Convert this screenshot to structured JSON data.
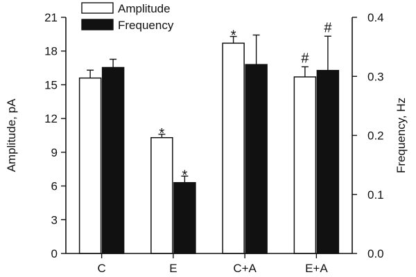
{
  "chart_data": {
    "type": "bar",
    "title": "",
    "categories": [
      "C",
      "E",
      "C+A",
      "E+A"
    ],
    "left_axis": {
      "label": "Amplitude, pA",
      "ylim": [
        0,
        21
      ],
      "ticks": [
        0,
        3,
        6,
        9,
        12,
        15,
        18,
        21
      ],
      "tick_labels": [
        "0",
        "3",
        "6",
        "9",
        "12",
        "15",
        "18",
        "21"
      ]
    },
    "right_axis": {
      "label": "Frequency, Hz",
      "ylim": [
        0,
        0.4
      ],
      "ticks": [
        0,
        0.1,
        0.2,
        0.3,
        0.4
      ],
      "tick_labels": [
        "0.0",
        "0.1",
        "0.2",
        "0.3",
        "0.4"
      ]
    },
    "series": [
      {
        "name": "Amplitude",
        "axis": "left",
        "fill": "#ffffff",
        "values": [
          15.6,
          10.3,
          18.7,
          15.7
        ],
        "errors": [
          0.7,
          0.3,
          0.6,
          0.9
        ],
        "marks": [
          "",
          "*",
          "*",
          "#"
        ]
      },
      {
        "name": "Frequency",
        "axis": "right",
        "fill": "#111111",
        "values": [
          0.315,
          0.12,
          0.32,
          0.31
        ],
        "errors": [
          0.014,
          0.011,
          0.05,
          0.058
        ],
        "marks": [
          "",
          "*",
          "",
          "#"
        ]
      }
    ],
    "legend": {
      "position": "top-left"
    }
  }
}
